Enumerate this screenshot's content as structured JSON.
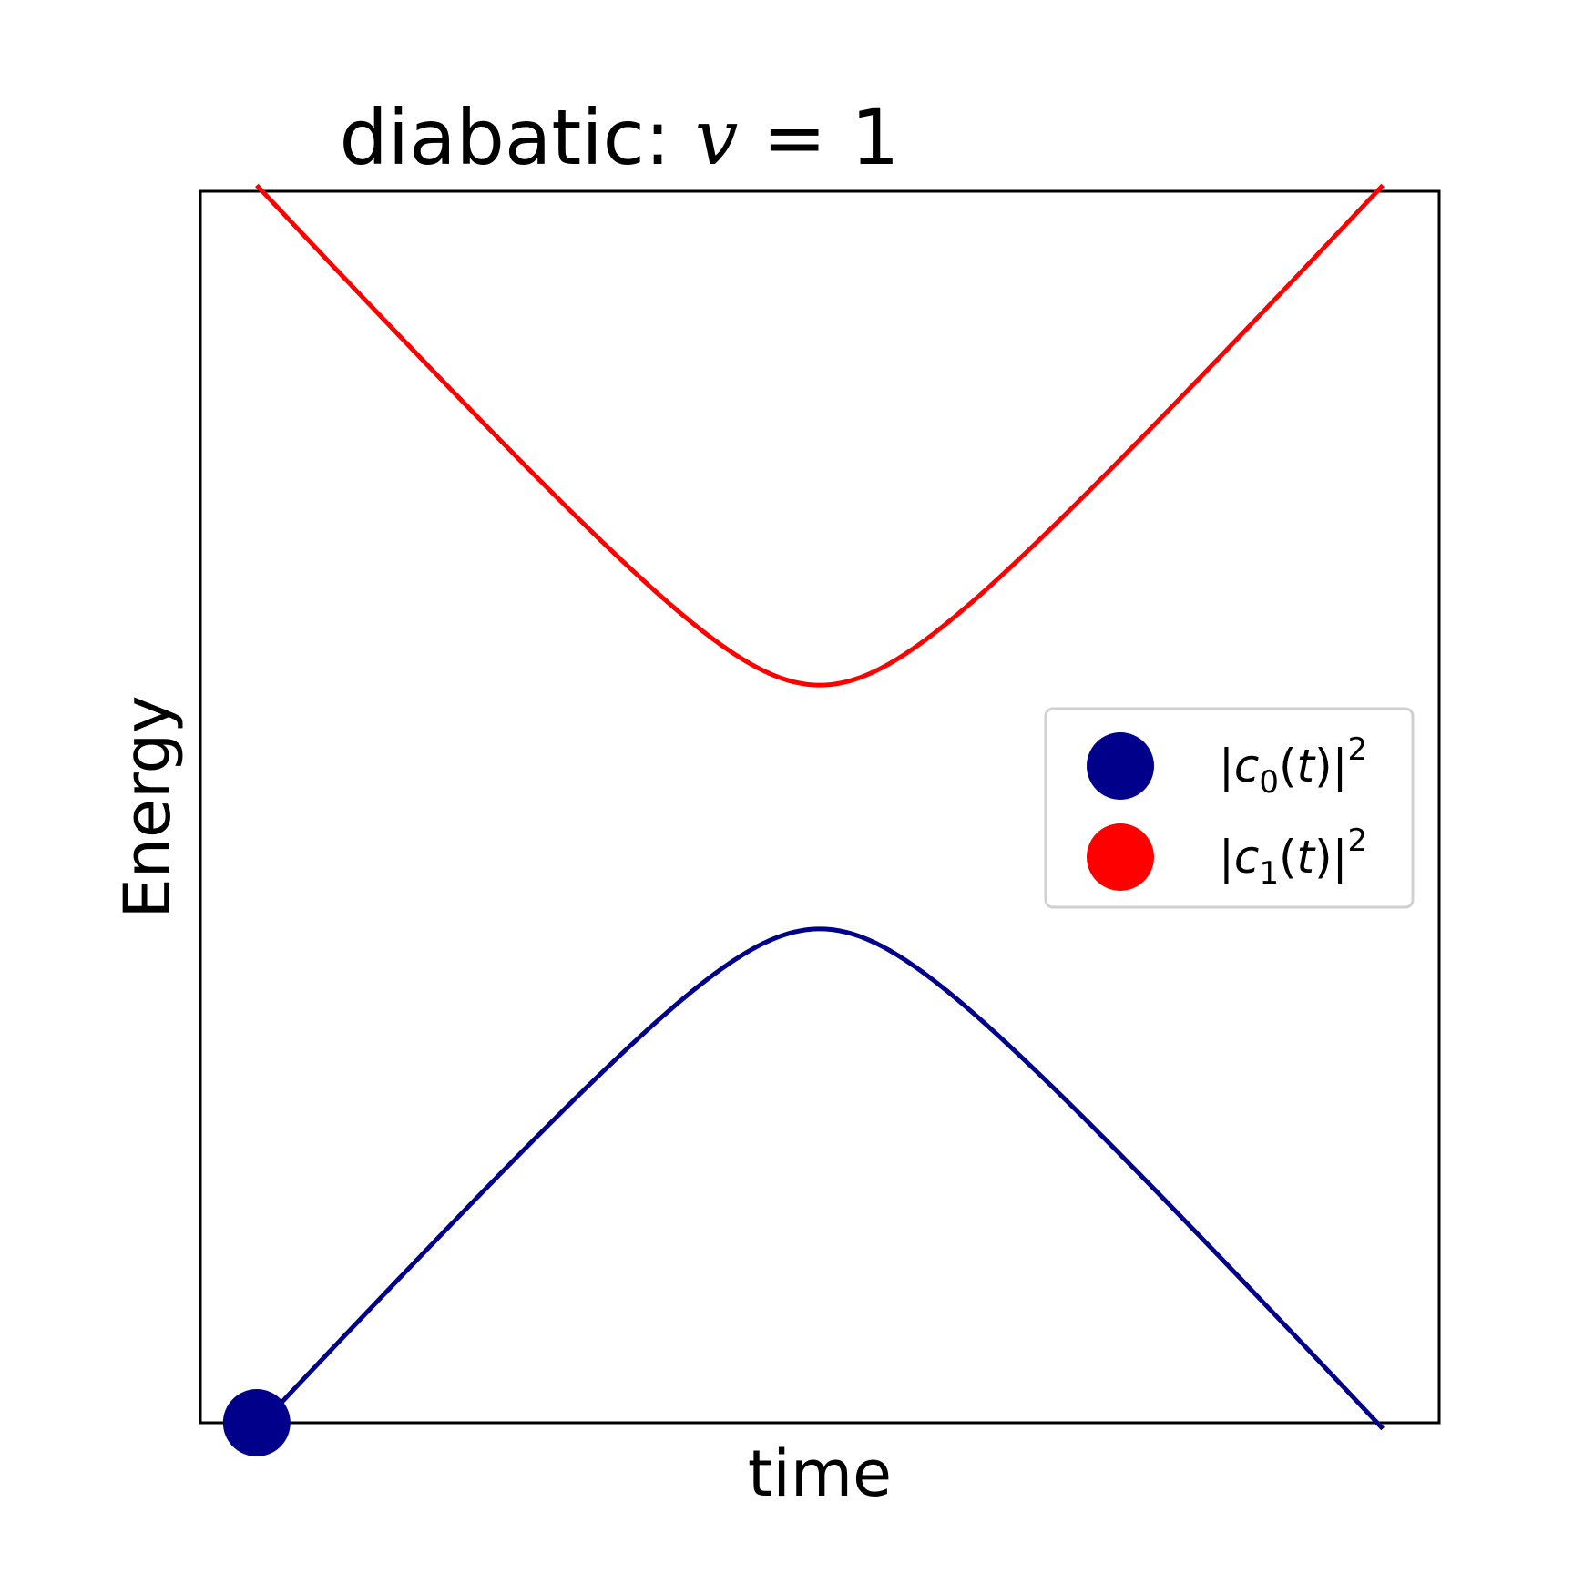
{
  "chart_data": {
    "type": "line",
    "title": "diabatic: v = 1",
    "xlabel": "time",
    "ylabel": "Energy",
    "xlim": [
      -5.5,
      5.5
    ],
    "ylim": [
      -5.05,
      5.05
    ],
    "grid": false,
    "xticks": [],
    "yticks": [],
    "curves": [
      {
        "name": "upper",
        "color": "#ff0000",
        "gap": 1.0,
        "sign": 1,
        "t_range": [
          -5,
          5
        ]
      },
      {
        "name": "lower",
        "color": "#00008b",
        "gap": 1.0,
        "sign": -1,
        "t_range": [
          -5,
          5
        ]
      }
    ],
    "marker": {
      "x": -5,
      "y": -5.05,
      "color": "#00008b"
    },
    "legend": {
      "placement": "center-right",
      "entries": [
        {
          "sym": "c",
          "sub": "0",
          "color": "#00008b"
        },
        {
          "sym": "c",
          "sub": "1",
          "color": "#ff0000"
        }
      ]
    }
  }
}
